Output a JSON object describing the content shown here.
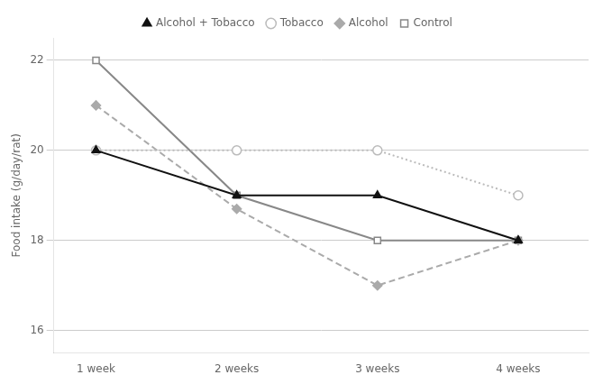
{
  "chart_data": {
    "type": "line",
    "x": [
      1,
      2,
      3,
      4
    ],
    "xlim": [
      0.7,
      4.5
    ],
    "xticks": [
      {
        "value": 1,
        "label": "1 week"
      },
      {
        "value": 2,
        "label": "2 weeks"
      },
      {
        "value": 3,
        "label": "3 weeks"
      },
      {
        "value": 4,
        "label": "4 weeks"
      }
    ],
    "ylabel": "Food intake (g/day/rat)",
    "ylim": [
      15.5,
      22.5
    ],
    "yticks": [
      16,
      18,
      20,
      22
    ],
    "grid": "y",
    "legend": "top",
    "series": [
      {
        "name": "Control",
        "color": "#888888",
        "marker": "open square",
        "line_style": "solid",
        "values": [
          22.0,
          19.0,
          18.0,
          18.0
        ]
      },
      {
        "name": "Alcohol",
        "color": "#aaaaaa",
        "marker": "diamond",
        "line_style": "dashed",
        "values": [
          21.0,
          18.7,
          17.0,
          18.0
        ]
      },
      {
        "name": "Tobacco",
        "color": "#bbbbbb",
        "marker": "open circle",
        "line_style": "dotted",
        "values": [
          20.0,
          20.0,
          20.0,
          19.0
        ]
      },
      {
        "name": "Alcohol + Tobacco",
        "color": "#111111",
        "marker": "triangle",
        "line_style": "solid",
        "values": [
          20.0,
          19.0,
          19.0,
          18.0
        ]
      }
    ]
  }
}
